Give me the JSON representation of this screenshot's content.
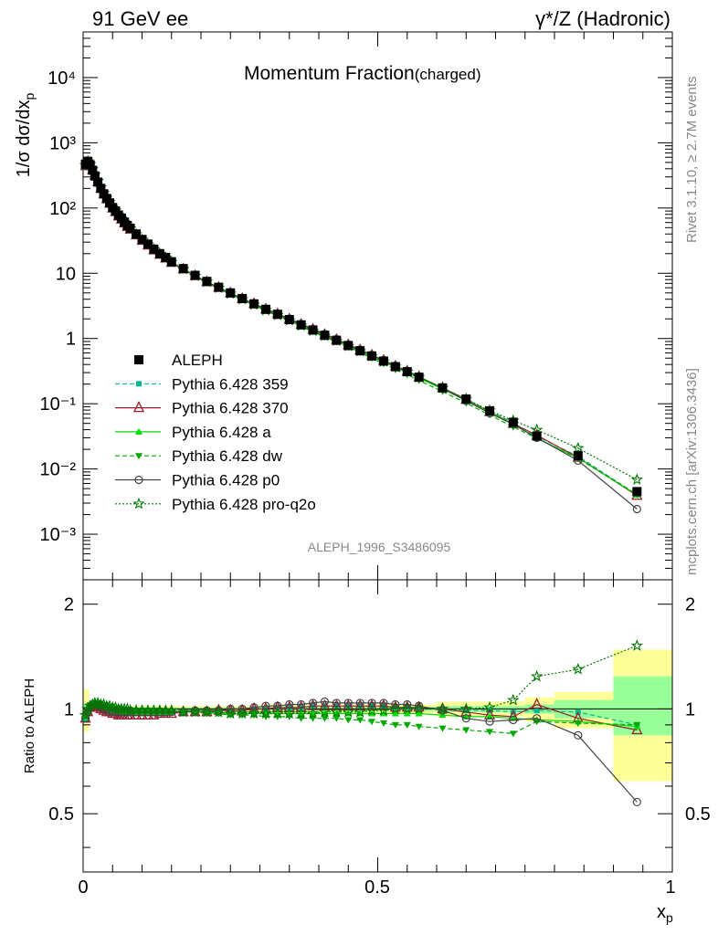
{
  "header": {
    "left": "91 GeV ee",
    "right": "γ*/Z (Hadronic)"
  },
  "side_labels": {
    "rivet": "Rivet 3.1.10, ≥ 2.7M events",
    "mcplots": "mcplots.cern.ch [arXiv:1306.3436]"
  },
  "main_panel": {
    "title": "Momentum Fraction",
    "title_suffix": "(charged)",
    "ylabel": "1/σ dσ/dx",
    "ylabel_sub": "p",
    "analysis_tag": "ALEPH_1996_S3486095",
    "ytick_labels": [
      "10⁻³",
      "10⁻²",
      "10⁻¹",
      "1",
      "10",
      "10²",
      "10³",
      "10⁴"
    ]
  },
  "ratio_panel": {
    "ylabel": "Ratio to ALEPH",
    "ytick_labels": [
      "0.5",
      "1",
      "2"
    ]
  },
  "xaxis": {
    "label": "x",
    "label_sub": "p",
    "tick_labels": [
      "0",
      "0.5",
      "1"
    ]
  },
  "legend": [
    {
      "name": "ALEPH",
      "color": "#000000",
      "marker": "square-filled",
      "line": "none"
    },
    {
      "name": "Pythia 6.428 359",
      "color": "#00b894",
      "marker": "square-filled-small",
      "line": "dashed"
    },
    {
      "name": "Pythia 6.428 370",
      "color": "#9b1b30",
      "marker": "triangle-open",
      "line": "solid"
    },
    {
      "name": "Pythia 6.428 a",
      "color": "#00dd00",
      "marker": "triangle-filled",
      "line": "solid"
    },
    {
      "name": "Pythia 6.428 dw",
      "color": "#00aa00",
      "marker": "triangle-down-filled",
      "line": "dashed"
    },
    {
      "name": "Pythia 6.428 p0",
      "color": "#444444",
      "marker": "circle-open",
      "line": "solid"
    },
    {
      "name": "Pythia 6.428 pro-q2o",
      "color": "#007700",
      "marker": "star-open",
      "line": "dotted"
    }
  ],
  "chart_data": {
    "type": "line",
    "x": [
      0.004,
      0.008,
      0.012,
      0.016,
      0.02,
      0.025,
      0.03,
      0.035,
      0.04,
      0.045,
      0.05,
      0.055,
      0.06,
      0.065,
      0.07,
      0.075,
      0.08,
      0.09,
      0.1,
      0.11,
      0.12,
      0.13,
      0.14,
      0.15,
      0.17,
      0.19,
      0.21,
      0.23,
      0.25,
      0.27,
      0.29,
      0.31,
      0.33,
      0.35,
      0.37,
      0.39,
      0.41,
      0.43,
      0.45,
      0.47,
      0.49,
      0.51,
      0.53,
      0.55,
      0.57,
      0.61,
      0.65,
      0.69,
      0.73,
      0.77,
      0.84,
      0.94
    ],
    "aleph": [
      470,
      520,
      460,
      380,
      310,
      250,
      200,
      165,
      140,
      120,
      102,
      90,
      78,
      70,
      61,
      54,
      49,
      40,
      33,
      28,
      23.5,
      20,
      17.5,
      15,
      11.8,
      9.3,
      7.5,
      6.1,
      5.0,
      4.1,
      3.4,
      2.8,
      2.35,
      1.95,
      1.62,
      1.35,
      1.12,
      0.94,
      0.78,
      0.65,
      0.54,
      0.45,
      0.37,
      0.31,
      0.255,
      0.175,
      0.118,
      0.078,
      0.052,
      0.032,
      0.016,
      0.0045
    ],
    "ratios": {
      "Pythia 6.428 359": [
        0.93,
        0.97,
        1.01,
        1.03,
        1.04,
        1.04,
        1.03,
        1.02,
        1.01,
        1.0,
        0.99,
        0.99,
        0.98,
        0.98,
        0.97,
        0.97,
        0.97,
        0.97,
        0.97,
        0.97,
        0.97,
        0.97,
        0.97,
        0.98,
        0.98,
        0.98,
        0.98,
        0.99,
        0.99,
        0.99,
        1.0,
        1.0,
        1.01,
        1.01,
        1.01,
        1.02,
        1.02,
        1.02,
        1.02,
        1.02,
        1.02,
        1.02,
        1.01,
        1.01,
        1.01,
        1.0,
        0.99,
        0.99,
        0.98,
        0.99,
        0.98,
        0.9
      ],
      "Pythia 6.428 370": [
        0.94,
        0.98,
        1.01,
        1.02,
        1.02,
        1.01,
        1.0,
        0.99,
        0.98,
        0.98,
        0.97,
        0.97,
        0.96,
        0.96,
        0.96,
        0.96,
        0.96,
        0.96,
        0.96,
        0.96,
        0.96,
        0.97,
        0.97,
        0.97,
        0.98,
        0.98,
        0.98,
        0.99,
        0.99,
        0.99,
        1.0,
        1.0,
        1.01,
        1.01,
        1.01,
        1.02,
        1.02,
        1.02,
        1.02,
        1.02,
        1.02,
        1.02,
        1.01,
        1.01,
        1.01,
        1.0,
        0.98,
        0.96,
        0.95,
        1.03,
        0.94,
        0.87
      ],
      "Pythia 6.428 a": [
        0.95,
        0.99,
        1.02,
        1.04,
        1.04,
        1.04,
        1.03,
        1.02,
        1.01,
        1.0,
        0.99,
        0.99,
        0.99,
        0.98,
        0.98,
        0.98,
        0.98,
        0.98,
        0.98,
        0.98,
        0.98,
        0.98,
        0.98,
        0.98,
        0.98,
        0.98,
        0.98,
        0.97,
        0.97,
        0.97,
        0.97,
        0.97,
        0.97,
        0.97,
        0.97,
        0.97,
        0.97,
        0.97,
        0.97,
        0.97,
        0.97,
        0.97,
        0.97,
        0.97,
        0.97,
        0.96,
        0.95,
        0.95,
        0.94,
        0.93,
        0.92,
        0.89
      ],
      "Pythia 6.428 dw": [
        0.95,
        0.99,
        1.02,
        1.03,
        1.03,
        1.03,
        1.02,
        1.02,
        1.01,
        1.01,
        1.0,
        1.0,
        1.0,
        0.99,
        0.99,
        0.99,
        0.99,
        0.99,
        0.99,
        0.99,
        0.99,
        0.99,
        0.98,
        0.98,
        0.98,
        0.98,
        0.97,
        0.97,
        0.96,
        0.96,
        0.96,
        0.95,
        0.95,
        0.95,
        0.94,
        0.94,
        0.94,
        0.94,
        0.93,
        0.93,
        0.92,
        0.91,
        0.9,
        0.9,
        0.89,
        0.88,
        0.87,
        0.86,
        0.85,
        0.92,
        0.91,
        0.9
      ],
      "Pythia 6.428 p0": [
        0.94,
        0.98,
        1.01,
        1.03,
        1.03,
        1.02,
        1.01,
        1.0,
        0.99,
        0.99,
        0.98,
        0.98,
        0.98,
        0.98,
        0.98,
        0.98,
        0.98,
        0.98,
        0.98,
        0.98,
        0.98,
        0.98,
        0.98,
        0.98,
        0.98,
        0.99,
        0.99,
        0.99,
        1.0,
        1.0,
        1.01,
        1.02,
        1.02,
        1.03,
        1.03,
        1.04,
        1.05,
        1.04,
        1.04,
        1.04,
        1.04,
        1.04,
        1.03,
        1.03,
        1.02,
        0.99,
        0.94,
        0.92,
        0.93,
        0.94,
        0.84,
        0.54
      ],
      "Pythia 6.428 pro-q2o": [
        0.96,
        1.0,
        1.02,
        1.03,
        1.04,
        1.04,
        1.03,
        1.03,
        1.02,
        1.02,
        1.01,
        1.01,
        1.0,
        1.0,
        1.0,
        1.0,
        0.99,
        0.99,
        0.99,
        0.99,
        0.99,
        0.99,
        0.99,
        0.99,
        0.98,
        0.98,
        0.98,
        0.98,
        0.97,
        0.97,
        0.97,
        0.97,
        0.97,
        0.97,
        0.97,
        0.97,
        0.98,
        0.98,
        0.98,
        0.98,
        0.99,
        0.99,
        1.0,
        1.0,
        1.0,
        1.0,
        1.0,
        1.01,
        1.06,
        1.24,
        1.3,
        1.52
      ]
    },
    "uncertainty_bands": [
      {
        "x0": 0.0,
        "x1": 0.01,
        "inner": [
          0.96,
          1.04
        ],
        "outer": [
          0.86,
          1.14
        ]
      },
      {
        "x0": 0.01,
        "x1": 0.3,
        "inner": [
          0.99,
          1.01
        ],
        "outer": [
          0.98,
          1.02
        ]
      },
      {
        "x0": 0.3,
        "x1": 0.6,
        "inner": [
          0.985,
          1.015
        ],
        "outer": [
          0.97,
          1.03
        ]
      },
      {
        "x0": 0.6,
        "x1": 0.75,
        "inner": [
          0.98,
          1.02
        ],
        "outer": [
          0.95,
          1.05
        ]
      },
      {
        "x0": 0.75,
        "x1": 0.8,
        "inner": [
          0.97,
          1.03
        ],
        "outer": [
          0.92,
          1.08
        ]
      },
      {
        "x0": 0.8,
        "x1": 0.9,
        "inner": [
          0.94,
          1.06
        ],
        "outer": [
          0.88,
          1.12
        ]
      },
      {
        "x0": 0.9,
        "x1": 1.0,
        "inner": [
          0.84,
          1.24
        ],
        "outer": [
          0.62,
          1.48
        ]
      }
    ],
    "xlim": [
      0,
      1
    ],
    "ylim_main": [
      0.0002,
      50000
    ],
    "ylim_ratio": [
      0.34,
      2.35
    ],
    "log_y_main": true,
    "log_y_ratio": true
  }
}
